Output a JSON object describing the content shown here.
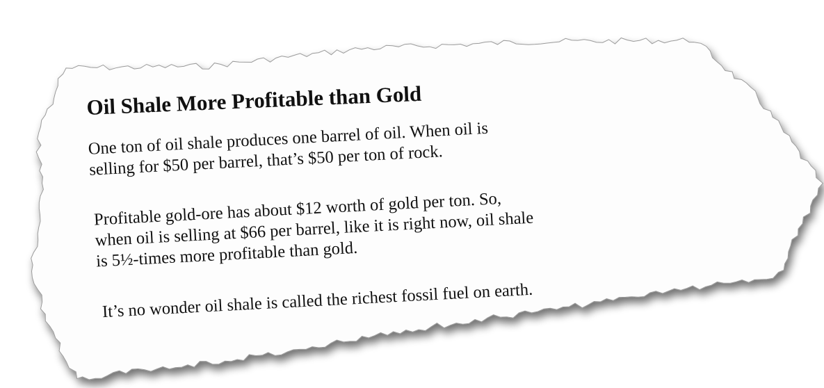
{
  "article": {
    "headline": "Oil Shale More Profitable than Gold",
    "paragraphs": [
      {
        "lines": [
          "One ton of oil shale produces one barrel of oil. When oil is",
          "selling for $50 per barrel, that’s $50 per ton of rock."
        ]
      },
      {
        "lines": [
          "Profitable gold-ore has about $12 worth of gold per ton. So,",
          "when oil is selling at $66 per barrel, like it is right now, oil shale",
          "is 5½-times more profitable than gold."
        ]
      },
      {
        "lines": [
          "It’s no wonder oil shale is called the richest fossil fuel on earth."
        ]
      }
    ]
  }
}
